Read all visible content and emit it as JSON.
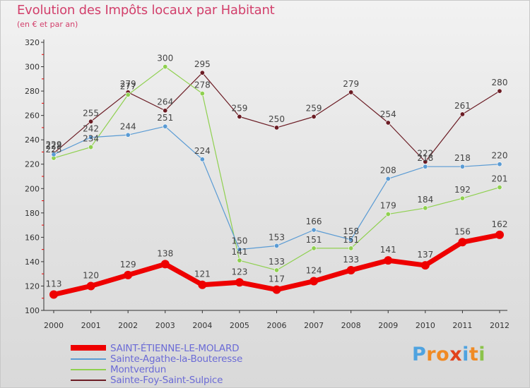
{
  "title": "Evolution des Impôts locaux par Habitant",
  "subtitle": "(en € et par an)",
  "logo": {
    "letters": [
      "P",
      "r",
      "o",
      "x",
      "i",
      "t",
      "i"
    ],
    "colors": [
      "#4fa3e0",
      "#f08a24",
      "#f08a24",
      "#e2421d",
      "#4fa3e0",
      "#f08a24",
      "#8bc34a"
    ]
  },
  "chart_data": {
    "type": "line",
    "x": [
      "2000",
      "2001",
      "2002",
      "2003",
      "2004",
      "2005",
      "2006",
      "2007",
      "2008",
      "2009",
      "2010",
      "2011",
      "2012"
    ],
    "ylim": [
      100,
      320
    ],
    "yticks": [
      "100",
      "120",
      "140",
      "160",
      "180",
      "200",
      "220",
      "240",
      "260",
      "280",
      "300",
      "320"
    ],
    "grid": false,
    "legend_position": "bottom",
    "series": [
      {
        "name": "SAINT-ÉTIENNE-LE-MOLARD",
        "color": "#ee0000",
        "values": [
          113,
          120,
          129,
          138,
          121,
          123,
          117,
          124,
          133,
          141,
          137,
          156,
          162
        ],
        "labels": [
          "113",
          "120",
          "129",
          "138",
          "121",
          "123",
          "117",
          "124",
          "133",
          "141",
          "137",
          "156",
          "162"
        ]
      },
      {
        "name": "Sainte-Agathe-la-Bouteresse",
        "color": "#5a9bd4",
        "values": [
          228,
          242,
          244,
          251,
          224,
          150,
          153,
          166,
          158,
          208,
          218,
          218,
          220
        ],
        "labels": [
          "228",
          "242",
          "244",
          "251",
          "224",
          "150",
          "153",
          "166",
          "158",
          "208",
          "218",
          "218",
          "220"
        ]
      },
      {
        "name": "Montverdun",
        "color": "#8fd04f",
        "values": [
          225,
          234,
          277,
          300,
          278,
          141,
          133,
          151,
          151,
          179,
          184,
          192,
          201
        ],
        "labels": [
          "225",
          "234",
          "277",
          "300",
          "278",
          "141",
          "133",
          "151",
          "151",
          "179",
          "184",
          "192",
          "201"
        ]
      },
      {
        "name": "Sainte-Foy-Saint-Sulpice",
        "color": "#6b1c24",
        "values": [
          229,
          255,
          279,
          264,
          295,
          259,
          250,
          259,
          279,
          254,
          222,
          261,
          280
        ],
        "labels": [
          "229",
          "255",
          "279",
          "264",
          "295",
          "259",
          "250",
          "259",
          "279",
          "254",
          "222",
          "261",
          "280"
        ]
      }
    ]
  }
}
